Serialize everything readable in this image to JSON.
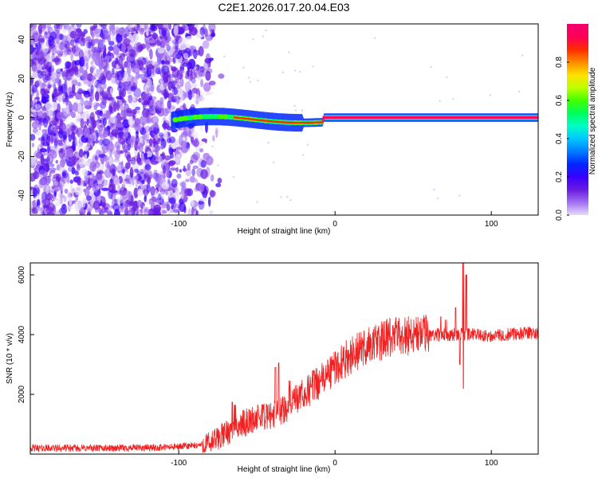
{
  "title": "C2E1.2026.017.20.04.E03",
  "chart_data": [
    {
      "type": "heatmap",
      "name": "spectrogram",
      "xlabel": "Height of straight line (km)",
      "ylabel": "Frequency (Hz)",
      "xlim": [
        -195,
        130
      ],
      "ylim": [
        -50,
        48
      ],
      "xticks": [
        -100,
        0,
        100
      ],
      "yticks": [
        -40,
        -20,
        0,
        20,
        40
      ],
      "colorbar": {
        "label": "Normalized spectral amplitude",
        "range": [
          0,
          1
        ],
        "ticks": [
          0.0,
          0.2,
          0.4,
          0.6,
          0.8
        ],
        "colors": [
          "#e7dcfa",
          "#a06ef0",
          "#6a1be0",
          "#3a00ff",
          "#0026ff",
          "#007dff",
          "#00c8ff",
          "#00ffc4",
          "#00ff5a",
          "#44ff00",
          "#bfff00",
          "#ffe000",
          "#ff8a00",
          "#ff2a00",
          "#ff0058",
          "#f0006e"
        ]
      },
      "noise_region_km": [
        -195,
        -80
      ],
      "signal_start_km": -105,
      "carrier_freq_hz": 0
    },
    {
      "type": "line",
      "name": "snr",
      "xlabel": "Height of straight line (km)",
      "ylabel": "SNR (10 * v/v)",
      "xlim": [
        -195,
        130
      ],
      "ylim": [
        0,
        6400
      ],
      "xticks": [
        -100,
        0,
        100
      ],
      "yticks": [
        2000,
        4000,
        6000
      ],
      "color": "#ee2222",
      "envelope": {
        "x": [
          -195,
          -140,
          -110,
          -90,
          -80,
          -70,
          -60,
          -50,
          -40,
          -30,
          -20,
          -10,
          0,
          10,
          20,
          30,
          40,
          50,
          60,
          70,
          80,
          90,
          100,
          110,
          120,
          130
        ],
        "y": [
          200,
          200,
          220,
          280,
          350,
          700,
          1000,
          1200,
          1300,
          1600,
          2000,
          2400,
          2900,
          3300,
          3600,
          3800,
          3950,
          4000,
          4000,
          4000,
          4000,
          4000,
          3950,
          4000,
          4050,
          4050
        ]
      },
      "spikes": [
        {
          "x": -66,
          "y": 1750
        },
        {
          "x": -64,
          "y": 1650
        },
        {
          "x": -46,
          "y": 1650
        },
        {
          "x": -38,
          "y": 2900
        },
        {
          "x": -36,
          "y": 3050
        },
        {
          "x": -29,
          "y": 2450
        },
        {
          "x": -14,
          "y": 2800
        },
        {
          "x": 68,
          "y": 4600
        },
        {
          "x": 71,
          "y": 4500
        },
        {
          "x": 77,
          "y": 4900
        },
        {
          "x": 82,
          "y": 6400
        },
        {
          "x": 84,
          "y": 6000
        },
        {
          "x": 82,
          "y": 2200
        },
        {
          "x": 80,
          "y": 3000
        }
      ]
    }
  ]
}
